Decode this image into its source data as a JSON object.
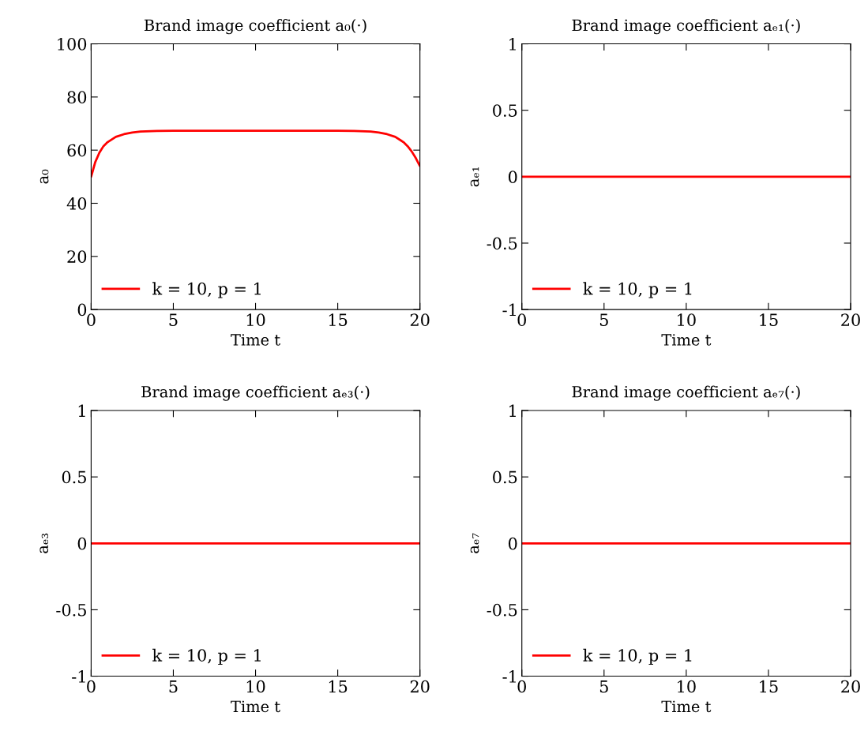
{
  "chart_data": [
    {
      "type": "line",
      "title": "Brand image coefficient a₀(·)",
      "xlabel": "Time t",
      "ylabel": "a₀",
      "x": [
        0,
        0.25,
        0.5,
        0.75,
        1,
        1.5,
        2,
        2.5,
        3,
        4,
        5,
        7,
        10,
        13,
        15,
        16,
        17,
        17.5,
        18,
        18.5,
        19,
        19.25,
        19.5,
        19.75,
        20
      ],
      "series": [
        {
          "name": "k = 10, p = 1",
          "color": "#ff0000",
          "values": [
            50,
            55.5,
            59,
            61.5,
            63,
            65,
            66,
            66.6,
            67,
            67.2,
            67.3,
            67.3,
            67.3,
            67.3,
            67.3,
            67.2,
            67,
            66.6,
            66,
            65,
            63,
            61.5,
            59.5,
            57,
            54
          ]
        }
      ],
      "xlim": [
        0,
        20
      ],
      "xticks": [
        0,
        5,
        10,
        15,
        20
      ],
      "ylim": [
        0,
        100
      ],
      "yticks": [
        0,
        20,
        40,
        60,
        80,
        100
      ],
      "legend": "bottom left",
      "grid": false
    },
    {
      "type": "line",
      "title": "Brand image coefficient aₑ₁(·)",
      "xlabel": "Time t",
      "ylabel": "aₑ₁",
      "x": [
        0,
        20
      ],
      "series": [
        {
          "name": "k = 10, p = 1",
          "color": "#ff0000",
          "values": [
            0,
            0
          ]
        }
      ],
      "xlim": [
        0,
        20
      ],
      "xticks": [
        0,
        5,
        10,
        15,
        20
      ],
      "ylim": [
        -1,
        1
      ],
      "yticks": [
        -1,
        -0.5,
        0,
        0.5,
        1
      ],
      "legend": "bottom left",
      "grid": false
    },
    {
      "type": "line",
      "title": "Brand image coefficient aₑ₃(·)",
      "xlabel": "Time t",
      "ylabel": "aₑ₃",
      "x": [
        0,
        20
      ],
      "series": [
        {
          "name": "k = 10, p = 1",
          "color": "#ff0000",
          "values": [
            0,
            0
          ]
        }
      ],
      "xlim": [
        0,
        20
      ],
      "xticks": [
        0,
        5,
        10,
        15,
        20
      ],
      "ylim": [
        -1,
        1
      ],
      "yticks": [
        -1,
        -0.5,
        0,
        0.5,
        1
      ],
      "legend": "bottom left",
      "grid": false
    },
    {
      "type": "line",
      "title": "Brand image coefficient aₑ₇(·)",
      "xlabel": "Time t",
      "ylabel": "aₑ₇",
      "x": [
        0,
        20
      ],
      "series": [
        {
          "name": "k = 10, p = 1",
          "color": "#ff0000",
          "values": [
            0,
            0
          ]
        }
      ],
      "xlim": [
        0,
        20
      ],
      "xticks": [
        0,
        5,
        10,
        15,
        20
      ],
      "ylim": [
        -1,
        1
      ],
      "yticks": [
        -1,
        -0.5,
        0,
        0.5,
        1
      ],
      "legend": "bottom left",
      "grid": false
    }
  ]
}
